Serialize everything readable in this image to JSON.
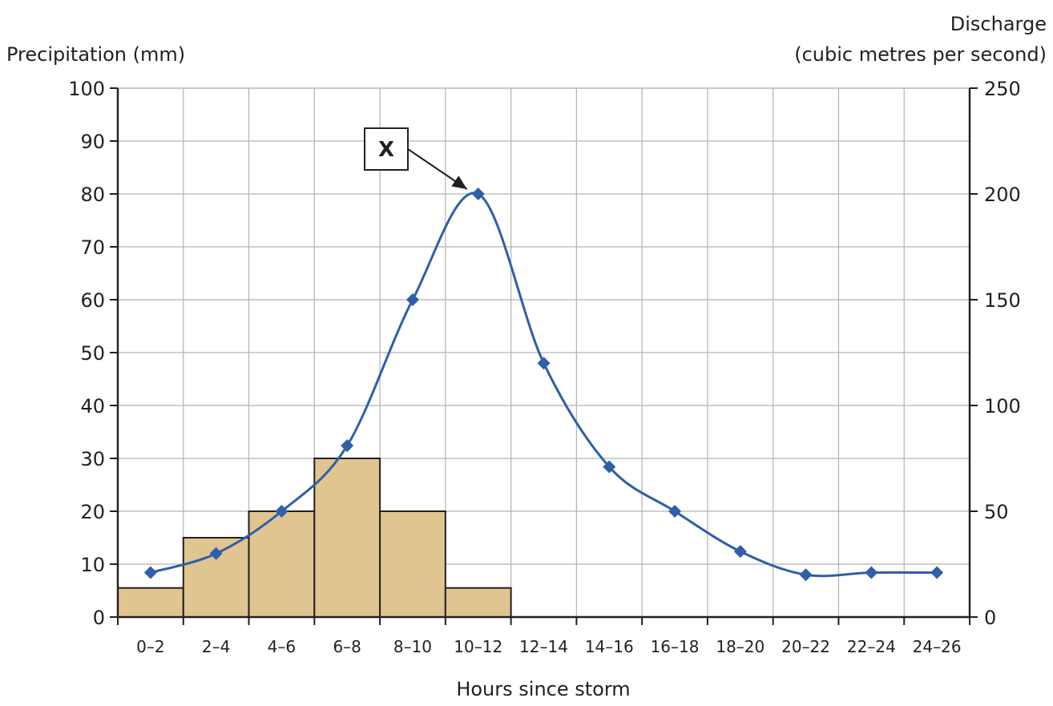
{
  "chart_data": {
    "type": "bar+line",
    "categories": [
      "0–2",
      "2–4",
      "4–6",
      "6–8",
      "8–10",
      "10–12",
      "12–14",
      "14–16",
      "16–18",
      "18–20",
      "20–22",
      "22–24",
      "24–26"
    ],
    "series": [
      {
        "kind": "bar",
        "axis": "left",
        "values": [
          5.5,
          15,
          20,
          30,
          20,
          5.5,
          0,
          0,
          0,
          0,
          0,
          0,
          0
        ]
      },
      {
        "kind": "line",
        "axis": "right",
        "values": [
          21,
          30,
          50,
          81,
          150,
          200,
          120,
          71,
          50,
          31,
          20,
          21,
          21
        ]
      }
    ],
    "xlabel": "Hours since storm",
    "ylabel_left": "Precipitation (mm)",
    "ylabel_right_line1": "Discharge",
    "ylabel_right_line2": "(cubic metres per second)",
    "ylim_left": [
      0,
      100
    ],
    "ylim_right": [
      0,
      250
    ],
    "yticks_left": [
      "0",
      "10",
      "20",
      "30",
      "40",
      "50",
      "60",
      "70",
      "80",
      "90",
      "100"
    ],
    "yticks_right": [
      "0",
      "50",
      "100",
      "150",
      "200",
      "250"
    ],
    "annotation": {
      "label": "X",
      "points_to_category_index": 5
    },
    "grid": true,
    "colors": {
      "bar_fill": "#e0c590",
      "bar_stroke": "#231f20",
      "line": "#2e5fa8",
      "grid": "#b3b3b3",
      "axis": "#231f20"
    }
  }
}
